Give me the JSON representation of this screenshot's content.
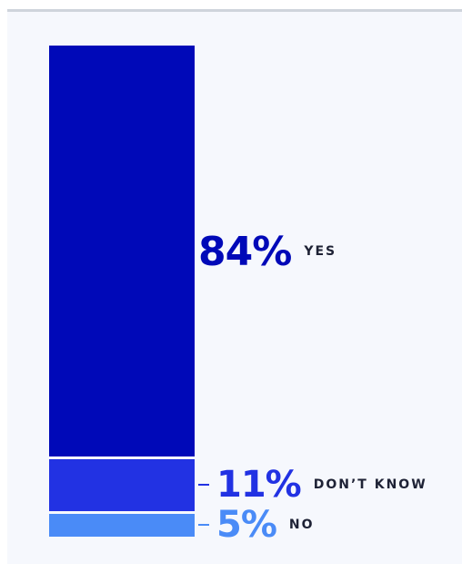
{
  "chart_data": {
    "type": "bar",
    "stacked": true,
    "categories": [
      "YES",
      "DON’T KNOW",
      "NO"
    ],
    "values": [
      84,
      11,
      5
    ],
    "value_labels": [
      "84%",
      "11%",
      "5%"
    ],
    "colors": [
      "#0009b8",
      "#2232e3",
      "#4a8bf7"
    ],
    "ylim": [
      0,
      100
    ],
    "grid": false,
    "legend": "none"
  }
}
